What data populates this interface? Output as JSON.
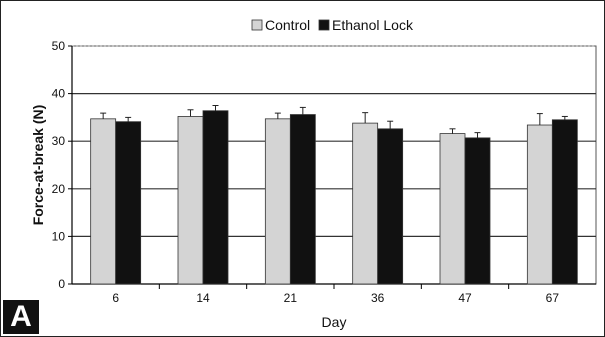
{
  "panel_label": "A",
  "chart_data": {
    "type": "bar",
    "title": "",
    "xlabel": "Day",
    "ylabel": "Force-at-break (N)",
    "categories": [
      "6",
      "14",
      "21",
      "36",
      "47",
      "67"
    ],
    "ylim": [
      0,
      50
    ],
    "yticks": [
      0,
      10,
      20,
      30,
      40,
      50
    ],
    "grid": true,
    "legend_position": "top-center",
    "series": [
      {
        "name": "Control",
        "color": "#d4d4d4",
        "values": [
          34.7,
          35.2,
          34.7,
          33.8,
          31.6,
          33.4
        ],
        "errors": [
          1.2,
          1.4,
          1.2,
          2.2,
          1.0,
          2.4
        ]
      },
      {
        "name": "Ethanol Lock",
        "color": "#111111",
        "values": [
          34.1,
          36.4,
          35.6,
          32.6,
          30.7,
          34.5
        ],
        "errors": [
          0.9,
          1.1,
          1.5,
          1.6,
          1.1,
          0.7
        ]
      }
    ]
  }
}
